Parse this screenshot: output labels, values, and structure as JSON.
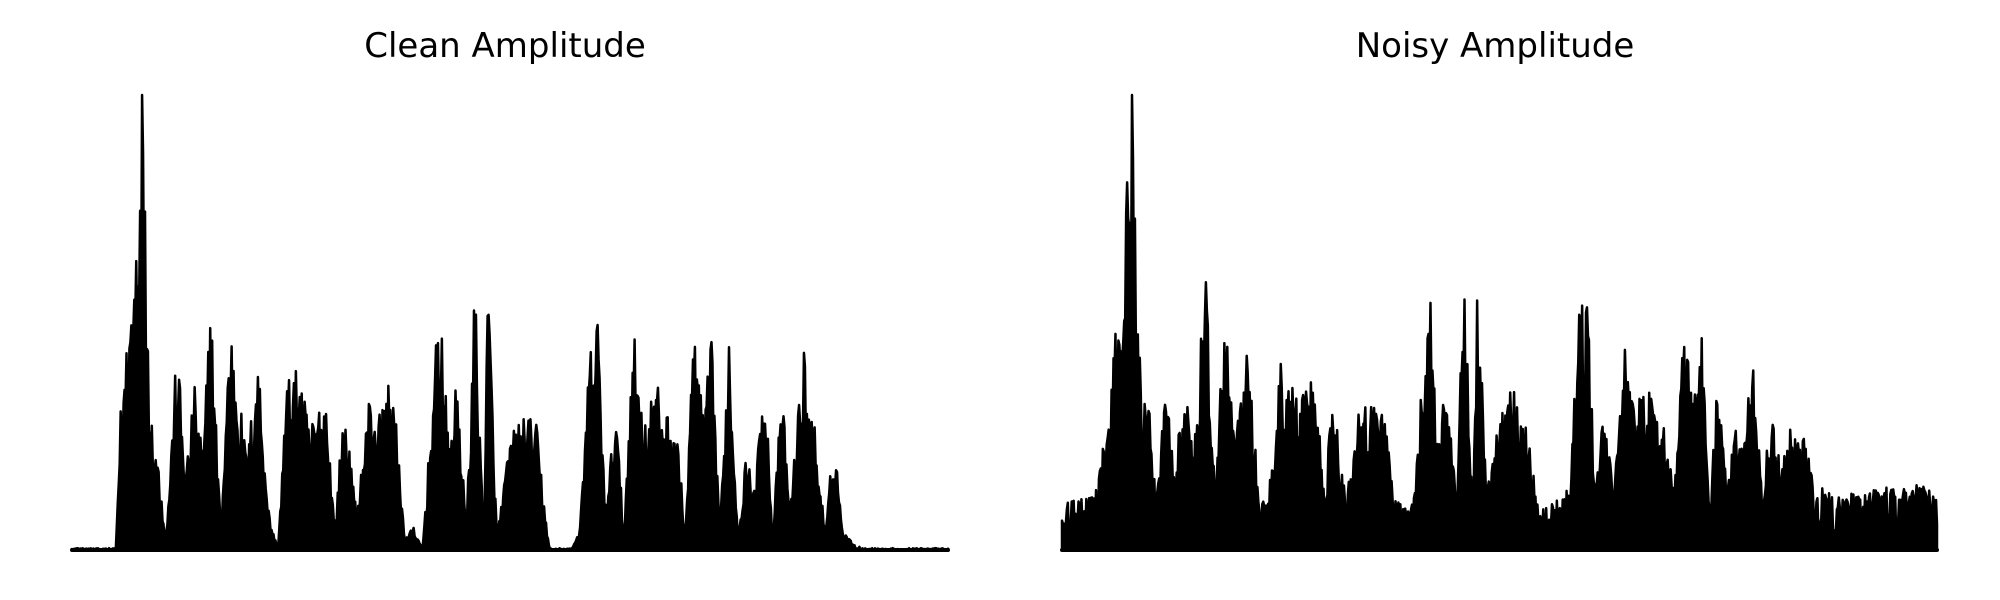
{
  "chart_data": [
    {
      "type": "area",
      "title": "Clean Amplitude",
      "xlabel": "",
      "ylabel": "",
      "axes_visible": false,
      "grid": false,
      "ylim": [
        0,
        1.0
      ],
      "color": "#000000",
      "noise_floor": 0.008,
      "segments": [
        [
          0.0,
          0.0
        ],
        [
          0.05,
          0.0
        ],
        [
          0.055,
          0.3
        ],
        [
          0.07,
          0.64
        ],
        [
          0.08,
          1.0
        ],
        [
          0.09,
          0.32
        ],
        [
          0.1,
          0.18
        ],
        [
          0.107,
          0.02
        ],
        [
          0.12,
          0.46
        ],
        [
          0.13,
          0.18
        ],
        [
          0.14,
          0.36
        ],
        [
          0.15,
          0.22
        ],
        [
          0.158,
          0.58
        ],
        [
          0.17,
          0.04
        ],
        [
          0.18,
          0.52
        ],
        [
          0.2,
          0.2
        ],
        [
          0.212,
          0.45
        ],
        [
          0.225,
          0.08
        ],
        [
          0.235,
          0.0
        ],
        [
          0.245,
          0.38
        ],
        [
          0.26,
          0.4
        ],
        [
          0.27,
          0.28
        ],
        [
          0.29,
          0.35
        ],
        [
          0.3,
          0.04
        ],
        [
          0.31,
          0.33
        ],
        [
          0.325,
          0.08
        ],
        [
          0.34,
          0.36
        ],
        [
          0.352,
          0.3
        ],
        [
          0.365,
          0.4
        ],
        [
          0.38,
          0.03
        ],
        [
          0.39,
          0.05
        ],
        [
          0.4,
          0.0
        ],
        [
          0.42,
          0.58
        ],
        [
          0.43,
          0.22
        ],
        [
          0.44,
          0.39
        ],
        [
          0.45,
          0.05
        ],
        [
          0.46,
          0.6
        ],
        [
          0.47,
          0.02
        ],
        [
          0.475,
          0.63
        ],
        [
          0.485,
          0.03
        ],
        [
          0.5,
          0.25
        ],
        [
          0.515,
          0.3
        ],
        [
          0.53,
          0.28
        ],
        [
          0.545,
          0.0
        ],
        [
          0.57,
          0.0
        ],
        [
          0.58,
          0.05
        ],
        [
          0.59,
          0.42
        ],
        [
          0.6,
          0.53
        ],
        [
          0.61,
          0.06
        ],
        [
          0.62,
          0.35
        ],
        [
          0.63,
          0.03
        ],
        [
          0.64,
          0.5
        ],
        [
          0.655,
          0.28
        ],
        [
          0.665,
          0.38
        ],
        [
          0.68,
          0.3
        ],
        [
          0.69,
          0.28
        ],
        [
          0.7,
          0.04
        ],
        [
          0.71,
          0.52
        ],
        [
          0.72,
          0.3
        ],
        [
          0.73,
          0.46
        ],
        [
          0.74,
          0.05
        ],
        [
          0.75,
          0.5
        ],
        [
          0.76,
          0.04
        ],
        [
          0.77,
          0.22
        ],
        [
          0.78,
          0.12
        ],
        [
          0.79,
          0.46
        ],
        [
          0.8,
          0.03
        ],
        [
          0.81,
          0.36
        ],
        [
          0.82,
          0.1
        ],
        [
          0.835,
          0.45
        ],
        [
          0.848,
          0.28
        ],
        [
          0.86,
          0.03
        ],
        [
          0.87,
          0.27
        ],
        [
          0.88,
          0.04
        ],
        [
          0.9,
          0.0
        ],
        [
          0.98,
          0.0
        ],
        [
          1.0,
          0.0
        ]
      ]
    },
    {
      "type": "area",
      "title": "Noisy Amplitude",
      "xlabel": "",
      "ylabel": "",
      "axes_visible": false,
      "grid": false,
      "ylim": [
        0,
        1.0
      ],
      "color": "#000000",
      "noise_floor": 0.1,
      "segments": [
        [
          0.0,
          0.1
        ],
        [
          0.03,
          0.12
        ],
        [
          0.04,
          0.14
        ],
        [
          0.055,
          0.33
        ],
        [
          0.07,
          0.7
        ],
        [
          0.08,
          1.0
        ],
        [
          0.09,
          0.36
        ],
        [
          0.1,
          0.3
        ],
        [
          0.107,
          0.12
        ],
        [
          0.12,
          0.4
        ],
        [
          0.13,
          0.2
        ],
        [
          0.14,
          0.38
        ],
        [
          0.15,
          0.22
        ],
        [
          0.165,
          0.64
        ],
        [
          0.175,
          0.12
        ],
        [
          0.185,
          0.52
        ],
        [
          0.2,
          0.28
        ],
        [
          0.212,
          0.46
        ],
        [
          0.225,
          0.12
        ],
        [
          0.235,
          0.1
        ],
        [
          0.25,
          0.42
        ],
        [
          0.26,
          0.4
        ],
        [
          0.27,
          0.32
        ],
        [
          0.29,
          0.4
        ],
        [
          0.3,
          0.12
        ],
        [
          0.31,
          0.38
        ],
        [
          0.325,
          0.1
        ],
        [
          0.34,
          0.4
        ],
        [
          0.35,
          0.3
        ],
        [
          0.365,
          0.38
        ],
        [
          0.38,
          0.12
        ],
        [
          0.39,
          0.1
        ],
        [
          0.4,
          0.08
        ],
        [
          0.42,
          0.61
        ],
        [
          0.43,
          0.25
        ],
        [
          0.44,
          0.4
        ],
        [
          0.45,
          0.12
        ],
        [
          0.46,
          0.61
        ],
        [
          0.47,
          0.1
        ],
        [
          0.475,
          0.63
        ],
        [
          0.485,
          0.12
        ],
        [
          0.5,
          0.3
        ],
        [
          0.515,
          0.36
        ],
        [
          0.53,
          0.3
        ],
        [
          0.545,
          0.08
        ],
        [
          0.56,
          0.12
        ],
        [
          0.57,
          0.11
        ],
        [
          0.58,
          0.14
        ],
        [
          0.59,
          0.52
        ],
        [
          0.6,
          0.56
        ],
        [
          0.61,
          0.15
        ],
        [
          0.62,
          0.33
        ],
        [
          0.63,
          0.12
        ],
        [
          0.64,
          0.49
        ],
        [
          0.655,
          0.3
        ],
        [
          0.665,
          0.38
        ],
        [
          0.68,
          0.3
        ],
        [
          0.69,
          0.3
        ],
        [
          0.7,
          0.12
        ],
        [
          0.71,
          0.53
        ],
        [
          0.72,
          0.33
        ],
        [
          0.73,
          0.52
        ],
        [
          0.74,
          0.12
        ],
        [
          0.75,
          0.4
        ],
        [
          0.76,
          0.12
        ],
        [
          0.77,
          0.29
        ],
        [
          0.78,
          0.24
        ],
        [
          0.79,
          0.46
        ],
        [
          0.8,
          0.12
        ],
        [
          0.81,
          0.3
        ],
        [
          0.82,
          0.2
        ],
        [
          0.835,
          0.28
        ],
        [
          0.848,
          0.25
        ],
        [
          0.86,
          0.14
        ],
        [
          0.87,
          0.14
        ],
        [
          0.88,
          0.12
        ],
        [
          0.9,
          0.13
        ],
        [
          0.95,
          0.14
        ],
        [
          0.98,
          0.15
        ],
        [
          1.0,
          0.12
        ]
      ]
    }
  ]
}
